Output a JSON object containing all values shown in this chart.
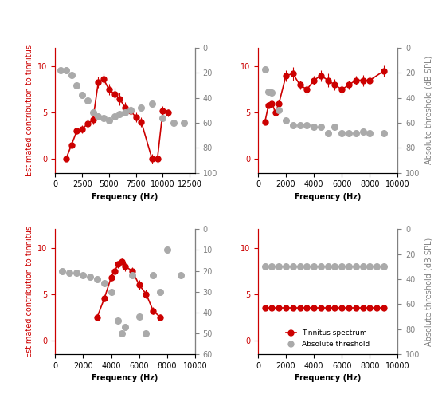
{
  "panels": [
    {
      "id": "TL",
      "red_x": [
        1000,
        1500,
        2000,
        2500,
        3000,
        3500,
        4000,
        4500,
        5000,
        5500,
        6000,
        6500,
        7000,
        7500,
        8000,
        9000,
        9500,
        10000,
        10500
      ],
      "red_y": [
        0,
        1.5,
        3.0,
        3.5,
        4.0,
        4.5,
        8.2,
        8.5,
        7.5,
        7.0,
        6.5,
        5.5,
        5.0,
        4.5,
        4.0,
        0.0,
        0.0,
        5.2,
        5.0
      ],
      "red_yerr": [
        0,
        0,
        0,
        0.3,
        0.5,
        0.5,
        0.6,
        0.6,
        0.5,
        0.7,
        0.6,
        0.5,
        0.5,
        0.4,
        0.5,
        0.5,
        0.5,
        0.4,
        0.4
      ],
      "gray_x": [
        500,
        1000,
        1500,
        2000,
        2500,
        3000,
        3500,
        4000,
        4500,
        5000,
        5500,
        6000,
        6500,
        7000,
        8000,
        9000,
        10000,
        11000,
        12000
      ],
      "gray_y": [
        18,
        18,
        22,
        30,
        38,
        42,
        55,
        55,
        56,
        58,
        55,
        55,
        53,
        52,
        48,
        45,
        56,
        60,
        60
      ],
      "xlim": [
        0,
        13000
      ],
      "xticks": [
        0,
        2500,
        5000,
        7500,
        10000,
        12500
      ],
      "ylim_left": [
        -1,
        12
      ],
      "ylim_right": [
        100,
        0
      ],
      "yticks_right": [
        0,
        20,
        40,
        60,
        80,
        100
      ],
      "yticks_left": [
        0,
        5,
        10
      ],
      "xlabel": "Frequency (Hz)",
      "show_right_label": false
    },
    {
      "id": "TR",
      "red_x": [
        500,
        750,
        1000,
        1250,
        1500,
        2000,
        2500,
        3000,
        3500,
        4000,
        4500,
        5000,
        5500,
        6000,
        6500,
        7000,
        7500,
        8000,
        9000
      ],
      "red_y": [
        4.0,
        6.0,
        6.0,
        5.0,
        6.0,
        9.0,
        9.2,
        8.0,
        7.5,
        8.5,
        9.0,
        8.5,
        8.0,
        7.5,
        8.0,
        8.5,
        8.5,
        8.5,
        9.5
      ],
      "red_yerr": [
        0.3,
        0.3,
        0.3,
        0.4,
        0.4,
        0.6,
        0.7,
        0.5,
        0.6,
        0.5,
        0.6,
        0.7,
        0.6,
        0.6,
        0.5,
        0.5,
        0.6,
        0.5,
        0.6
      ],
      "gray_x": [
        500,
        750,
        1000,
        1500,
        2000,
        2500,
        3000,
        3500,
        4000,
        4500,
        5000,
        5500,
        6000,
        6500,
        7000,
        7500,
        8000,
        9000
      ],
      "gray_y": [
        17,
        35,
        35,
        50,
        58,
        62,
        62,
        62,
        63,
        63,
        68,
        63,
        68,
        68,
        68,
        67,
        68,
        68
      ],
      "xlim": [
        0,
        10000
      ],
      "xticks": [
        0,
        2000,
        4000,
        6000,
        8000,
        10000
      ],
      "ylim_left": [
        -1,
        12
      ],
      "ylim_right": [
        100,
        0
      ],
      "yticks_right": [
        0,
        20,
        40,
        60,
        80,
        100
      ],
      "yticks_left": [
        0,
        5,
        10
      ],
      "xlabel": "Frequency (Hz)",
      "show_right_label": true
    },
    {
      "id": "BL",
      "red_x": [
        3000,
        3500,
        4000,
        4250,
        4500,
        4750,
        5000,
        5500,
        6000,
        6500,
        7000,
        7500
      ],
      "red_y": [
        2.5,
        4.5,
        6.5,
        7.5,
        8.0,
        8.5,
        8.0,
        7.5,
        6.0,
        5.0,
        3.2,
        2.5
      ],
      "red_yerr": [
        0.3,
        0.3,
        0.4,
        0.4,
        0.4,
        0.3,
        0.5,
        0.4,
        0.5,
        0.5,
        0.4,
        0.3
      ],
      "gray_x": [
        500,
        1000,
        1500,
        2000,
        2500,
        3000,
        3500,
        4000,
        4500,
        5000,
        5500,
        6000,
        6500,
        7000,
        7500,
        8000,
        8500,
        9000
      ],
      "gray_y": [
        20,
        20,
        20,
        21,
        22,
        23,
        25,
        28,
        38,
        50,
        22,
        44,
        52,
        22,
        35,
        10,
        22,
        22
      ],
      "xlim": [
        0,
        10000
      ],
      "xticks": [
        0,
        2000,
        4000,
        6000,
        8000,
        10000
      ],
      "ylim_left": [
        -1,
        12
      ],
      "ylim_right": [
        60,
        0
      ],
      "yticks_right": [
        0,
        10,
        20,
        30,
        40,
        50,
        60
      ],
      "yticks_left": [
        0,
        5,
        10
      ],
      "xlabel": "Frequency (Hz)",
      "show_right_label": false
    },
    {
      "id": "BR",
      "red_x": [
        500,
        1000,
        1500,
        2000,
        2500,
        3000,
        3500,
        4000,
        4500,
        5000,
        5500,
        6000,
        6500,
        7000,
        7500,
        8000,
        8500,
        9000
      ],
      "red_y": [
        3.5,
        3.5,
        3.5,
        3.5,
        3.5,
        3.5,
        3.5,
        3.5,
        3.5,
        3.5,
        3.5,
        3.5,
        3.5,
        3.5,
        3.5,
        3.5,
        3.5,
        3.5
      ],
      "red_yerr": [
        0.2,
        0.2,
        0.2,
        0.2,
        0.2,
        0.2,
        0.2,
        0.2,
        0.2,
        0.2,
        0.2,
        0.2,
        0.2,
        0.2,
        0.2,
        0.2,
        0.2,
        0.2
      ],
      "gray_x": [
        500,
        1000,
        1500,
        2000,
        2500,
        3000,
        3500,
        4000,
        4500,
        5000,
        5500,
        6000,
        6500,
        7000,
        7500,
        8000,
        8500,
        9000
      ],
      "gray_y": [
        30,
        30,
        30,
        30,
        30,
        30,
        30,
        30,
        30,
        30,
        30,
        30,
        30,
        30,
        30,
        30,
        30,
        30
      ],
      "xlim": [
        0,
        10000
      ],
      "xticks": [
        0,
        2000,
        4000,
        6000,
        8000,
        10000
      ],
      "ylim_left": [
        -1,
        12
      ],
      "ylim_right": [
        100,
        0
      ],
      "yticks_right": [
        0,
        20,
        40,
        60,
        80,
        100
      ],
      "yticks_left": [
        0,
        5,
        10
      ],
      "xlabel": "Frequency (Hz)",
      "show_right_label": true
    }
  ],
  "red_color": "#cc0000",
  "gray_color": "#aaaaaa",
  "left_ylabel": "Estimated contribution to tinnitus",
  "right_ylabel": "Absolute threshold (dB SPL)",
  "legend_labels": [
    "Tinnitus spectrum",
    "Absolute threshold"
  ],
  "fig_width": 5.55,
  "fig_height": 4.99
}
